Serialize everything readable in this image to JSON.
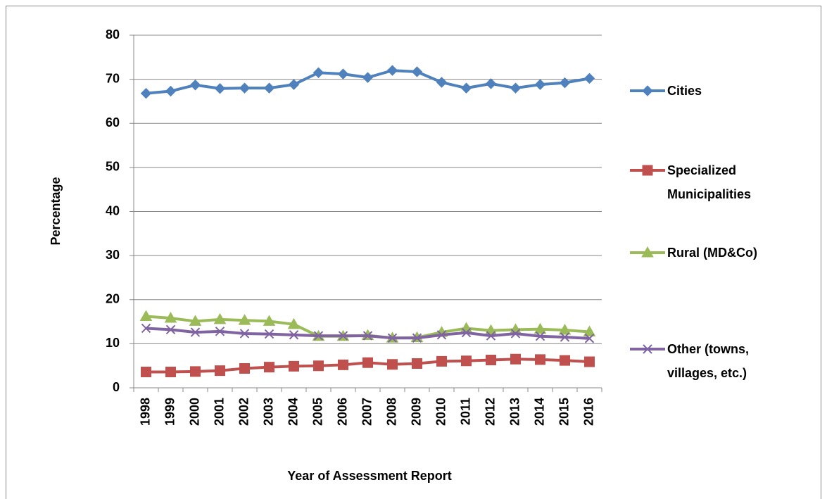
{
  "chart_data": {
    "type": "line",
    "x_label": "Year of Assessment Report",
    "y_label": "Percentage",
    "categories": [
      "1998",
      "1999",
      "2000",
      "2001",
      "2002",
      "2003",
      "2004",
      "2005",
      "2006",
      "2007",
      "2008",
      "2009",
      "2010",
      "2011",
      "2012",
      "2013",
      "2014",
      "2015",
      "2016"
    ],
    "series": [
      {
        "name": "Cities",
        "color": "#4f81bd",
        "marker": "diamond",
        "values": [
          66.8,
          67.3,
          68.7,
          67.9,
          68.0,
          68.0,
          68.8,
          71.5,
          71.2,
          70.4,
          72.0,
          71.7,
          69.3,
          68.0,
          69.0,
          68.0,
          68.8,
          69.2,
          70.2
        ]
      },
      {
        "name": "Specialized Municipalities",
        "color": "#c0504d",
        "marker": "square",
        "values": [
          3.6,
          3.6,
          3.7,
          3.9,
          4.4,
          4.7,
          4.9,
          5.0,
          5.2,
          5.7,
          5.3,
          5.5,
          6.0,
          6.1,
          6.3,
          6.5,
          6.4,
          6.2,
          5.9
        ]
      },
      {
        "name": "Rural (MD&Co)",
        "color": "#9bbb59",
        "marker": "triangle",
        "values": [
          16.2,
          15.8,
          15.1,
          15.5,
          15.3,
          15.1,
          14.4,
          11.7,
          11.7,
          11.9,
          11.3,
          11.4,
          12.6,
          13.5,
          13.0,
          13.2,
          13.3,
          13.1,
          12.7
        ]
      },
      {
        "name": "Other (towns, villages, etc.)",
        "color": "#8064a2",
        "marker": "x",
        "values": [
          13.5,
          13.2,
          12.6,
          12.8,
          12.3,
          12.2,
          12.0,
          11.8,
          11.8,
          11.8,
          11.3,
          11.3,
          12.0,
          12.5,
          11.8,
          12.3,
          11.7,
          11.5,
          11.2
        ]
      }
    ],
    "ylim": [
      0,
      80
    ],
    "yticks": [
      0,
      10,
      20,
      30,
      40,
      50,
      60,
      70,
      80
    ],
    "grid": true,
    "legend": "right"
  }
}
